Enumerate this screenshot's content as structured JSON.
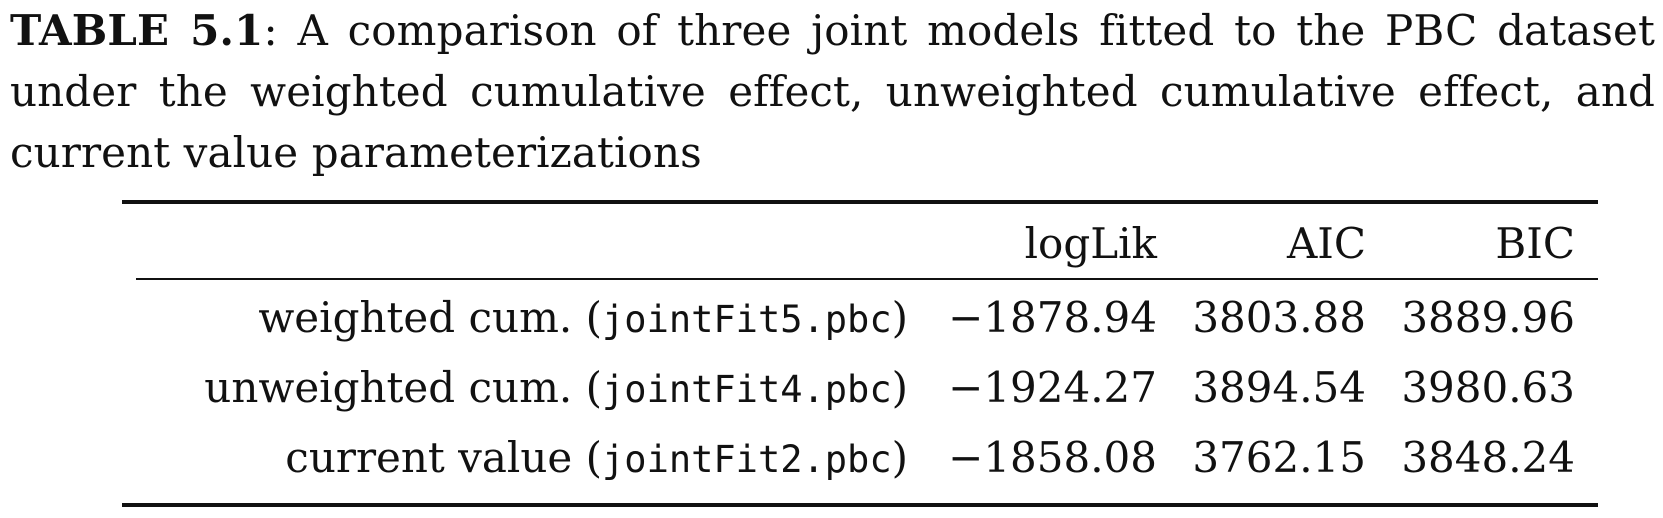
{
  "caption": {
    "label": "TABLE 5.1",
    "text": ": A comparison of three joint models fitted to the PBC dataset under the weighted cumulative effect, unweighted cumulative effect, and current value parameterizations"
  },
  "table": {
    "columns": [
      "",
      "logLik",
      "AIC",
      "BIC"
    ],
    "rows": [
      {
        "label": "weighted cum.",
        "object": "jointFit5.pbc",
        "loglik": "−1878.94",
        "aic": "3803.88",
        "bic": "3889.96"
      },
      {
        "label": "unweighted cum.",
        "object": "jointFit4.pbc",
        "loglik": "−1924.27",
        "aic": "3894.54",
        "bic": "3980.63"
      },
      {
        "label": "current value",
        "object": "jointFit2.pbc",
        "loglik": "−1858.08",
        "aic": "3762.15",
        "bic": "3848.24"
      }
    ]
  }
}
